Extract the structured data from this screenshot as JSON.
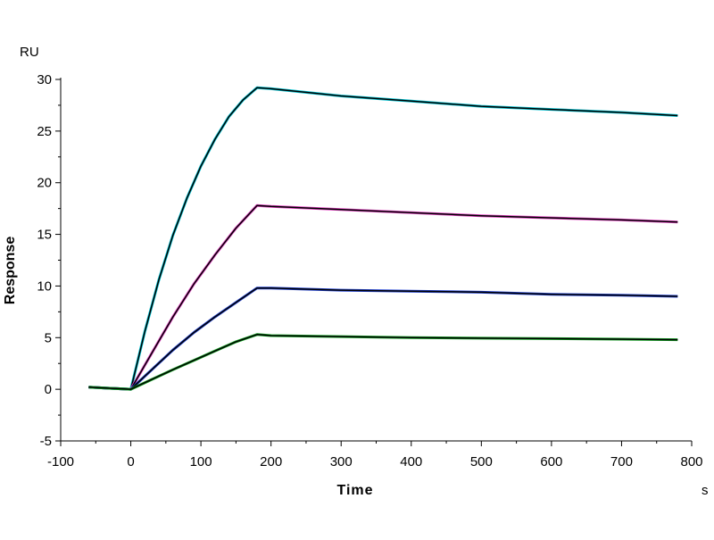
{
  "chart_data": {
    "type": "line",
    "title": "",
    "xlabel": "Time",
    "ylabel": "Response",
    "x_unit": "s",
    "y_unit": "RU",
    "xlim": [
      -100,
      800
    ],
    "ylim": [
      -5,
      30
    ],
    "x_ticks": [
      -100,
      0,
      100,
      200,
      300,
      400,
      500,
      600,
      700,
      800
    ],
    "y_ticks": [
      -5,
      0,
      5,
      10,
      15,
      20,
      25,
      30
    ],
    "grid": false,
    "legend": "none",
    "colors": {
      "axis": "#000000",
      "fit": "#000000",
      "measured": [
        "#00c0d0",
        "#e040c0",
        "#2040d0",
        "#10a020"
      ]
    },
    "series": [
      {
        "x": [
          -60,
          -30,
          0,
          20,
          40,
          60,
          80,
          100,
          120,
          140,
          160,
          180,
          200,
          300,
          400,
          500,
          600,
          700,
          780
        ],
        "y": [
          0.2,
          0.1,
          0,
          5.6,
          10.6,
          14.9,
          18.5,
          21.6,
          24.2,
          26.4,
          28.0,
          29.2,
          29.1,
          28.4,
          27.9,
          27.4,
          27.1,
          26.8,
          26.5
        ]
      },
      {
        "x": [
          -60,
          -30,
          0,
          30,
          60,
          90,
          120,
          150,
          180,
          200,
          300,
          400,
          500,
          600,
          700,
          780
        ],
        "y": [
          0.2,
          0.1,
          0,
          3.5,
          7.0,
          10.2,
          13.0,
          15.6,
          17.8,
          17.7,
          17.4,
          17.1,
          16.8,
          16.6,
          16.4,
          16.2
        ]
      },
      {
        "x": [
          -60,
          -30,
          0,
          30,
          60,
          90,
          120,
          150,
          180,
          200,
          300,
          400,
          500,
          600,
          700,
          780
        ],
        "y": [
          0.2,
          0.1,
          0,
          1.9,
          3.8,
          5.5,
          7.0,
          8.4,
          9.8,
          9.8,
          9.6,
          9.5,
          9.4,
          9.2,
          9.1,
          9.0
        ]
      },
      {
        "x": [
          -60,
          -30,
          0,
          30,
          60,
          90,
          120,
          150,
          180,
          200,
          300,
          400,
          500,
          600,
          700,
          780
        ],
        "y": [
          0.2,
          0.1,
          0,
          0.95,
          1.9,
          2.8,
          3.7,
          4.6,
          5.3,
          5.2,
          5.1,
          5.0,
          4.95,
          4.9,
          4.85,
          4.8
        ]
      }
    ]
  }
}
